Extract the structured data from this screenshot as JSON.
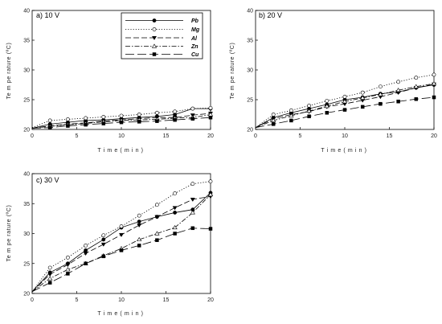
{
  "legend": {
    "entries": [
      "Pb",
      "Mg",
      "Al",
      "Zn",
      "Cu"
    ]
  },
  "chart_data": [
    {
      "type": "line",
      "title": "a) 10 V",
      "xlabel": "T i m e  ( m i n )",
      "ylabel": "Te m pe rature (ºC)",
      "xlim": [
        0,
        20
      ],
      "ylim": [
        20,
        40
      ],
      "xticks": [
        0,
        5,
        10,
        15,
        20
      ],
      "yticks": [
        20,
        25,
        30,
        35,
        40
      ],
      "grid": false,
      "legend_position": "top-right",
      "series": [
        {
          "name": "Pb",
          "x": [
            0,
            2,
            4,
            6,
            8,
            10,
            12,
            14,
            16,
            18,
            20
          ],
          "values": [
            20.2,
            20.9,
            21.2,
            21.5,
            21.6,
            21.8,
            22.0,
            22.2,
            22.5,
            23.5,
            23.5
          ]
        },
        {
          "name": "Mg",
          "x": [
            0,
            2,
            4,
            6,
            8,
            10,
            12,
            14,
            16,
            18,
            20
          ],
          "values": [
            20.3,
            21.5,
            21.7,
            21.9,
            22.1,
            22.3,
            22.5,
            22.8,
            23.0,
            23.5,
            23.6
          ]
        },
        {
          "name": "Al",
          "x": [
            0,
            2,
            4,
            6,
            8,
            10,
            12,
            14,
            16,
            18,
            20
          ],
          "values": [
            20.2,
            20.6,
            20.9,
            21.1,
            21.4,
            21.6,
            21.8,
            22.0,
            22.0,
            22.4,
            22.7
          ]
        },
        {
          "name": "Zn",
          "x": [
            0,
            2,
            4,
            6,
            8,
            10,
            12,
            14,
            16,
            18,
            20
          ],
          "values": [
            20.2,
            20.5,
            20.8,
            21.0,
            21.3,
            21.5,
            21.6,
            21.7,
            21.9,
            22.0,
            22.5
          ]
        },
        {
          "name": "Cu",
          "x": [
            0,
            2,
            4,
            6,
            8,
            10,
            12,
            14,
            16,
            18,
            20
          ],
          "values": [
            20.2,
            20.3,
            20.6,
            20.8,
            21.0,
            21.2,
            21.3,
            21.4,
            21.6,
            21.8,
            22.0
          ]
        }
      ]
    },
    {
      "type": "line",
      "title": "b) 20 V",
      "xlabel": "T i m e  ( m i n )",
      "ylabel": "Te m pe rature (ºC)",
      "xlim": [
        0,
        20
      ],
      "ylim": [
        20,
        40
      ],
      "xticks": [
        0,
        5,
        10,
        15,
        20
      ],
      "yticks": [
        20,
        25,
        30,
        35,
        40
      ],
      "grid": false,
      "series": [
        {
          "name": "Pb",
          "x": [
            0,
            2,
            4,
            6,
            8,
            10,
            12,
            14,
            16,
            18,
            20
          ],
          "values": [
            20.3,
            22.0,
            22.8,
            23.5,
            24.2,
            25.0,
            25.4,
            26.0,
            26.3,
            27.0,
            27.5
          ]
        },
        {
          "name": "Mg",
          "x": [
            0,
            2,
            4,
            6,
            8,
            10,
            12,
            14,
            16,
            18,
            20
          ],
          "values": [
            20.3,
            22.5,
            23.2,
            24.0,
            24.8,
            25.5,
            26.2,
            27.2,
            28.0,
            28.7,
            29.2
          ]
        },
        {
          "name": "Al",
          "x": [
            0,
            2,
            4,
            6,
            8,
            10,
            12,
            14,
            16,
            18,
            20
          ],
          "values": [
            20.3,
            21.8,
            22.5,
            23.0,
            23.8,
            24.3,
            24.9,
            25.5,
            26.2,
            27.0,
            27.6
          ]
        },
        {
          "name": "Zn",
          "x": [
            0,
            2,
            4,
            6,
            8,
            10,
            12,
            14,
            16,
            18,
            20
          ],
          "values": [
            20.3,
            21.5,
            22.3,
            23.1,
            23.9,
            24.7,
            25.3,
            25.9,
            26.6,
            27.2,
            27.7
          ]
        },
        {
          "name": "Cu",
          "x": [
            0,
            2,
            4,
            6,
            8,
            10,
            12,
            14,
            16,
            18,
            20
          ],
          "values": [
            20.3,
            20.9,
            21.5,
            22.2,
            22.8,
            23.3,
            23.8,
            24.3,
            24.7,
            25.1,
            25.4
          ]
        }
      ]
    },
    {
      "type": "line",
      "title": "c) 30 V",
      "xlabel": "T i m e  ( m i n )",
      "ylabel": "Te m pe rature (ºC)",
      "xlim": [
        0,
        20
      ],
      "ylim": [
        20,
        40
      ],
      "xticks": [
        0,
        5,
        10,
        15,
        20
      ],
      "yticks": [
        20,
        25,
        30,
        35,
        40
      ],
      "grid": false,
      "series": [
        {
          "name": "Pb",
          "x": [
            0,
            2,
            4,
            6,
            8,
            10,
            12,
            14,
            16,
            18,
            20
          ],
          "values": [
            20.3,
            23.5,
            25.0,
            27.2,
            29.0,
            31.0,
            32.0,
            32.8,
            33.5,
            34.0,
            36.8
          ]
        },
        {
          "name": "Mg",
          "x": [
            0,
            2,
            4,
            6,
            8,
            10,
            12,
            14,
            16,
            18,
            20
          ],
          "values": [
            20.3,
            24.3,
            26.0,
            28.0,
            29.7,
            31.2,
            33.0,
            34.8,
            36.7,
            38.3,
            38.7
          ]
        },
        {
          "name": "Al",
          "x": [
            0,
            2,
            4,
            6,
            8,
            10,
            12,
            14,
            16,
            18,
            20
          ],
          "values": [
            20.3,
            23.2,
            24.8,
            26.7,
            28.2,
            29.8,
            31.4,
            32.8,
            34.3,
            35.7,
            36.2
          ]
        },
        {
          "name": "Zn",
          "x": [
            0,
            2,
            4,
            6,
            8,
            10,
            12,
            14,
            16,
            18,
            20
          ],
          "values": [
            20.3,
            22.5,
            24.0,
            25.0,
            26.3,
            27.5,
            29.0,
            30.0,
            31.0,
            33.5,
            36.5
          ]
        },
        {
          "name": "Cu",
          "x": [
            0,
            2,
            4,
            6,
            8,
            10,
            12,
            14,
            16,
            18,
            20
          ],
          "values": [
            20.3,
            21.8,
            23.3,
            25.0,
            26.2,
            27.2,
            28.0,
            28.9,
            30.0,
            30.9,
            30.8
          ]
        }
      ]
    }
  ],
  "styles": {
    "Pb": {
      "dash": "",
      "marker": "circle-filled",
      "color": "#000000"
    },
    "Mg": {
      "dash": "1.2,2",
      "marker": "circle-open",
      "color": "#000000"
    },
    "Al": {
      "dash": "7,3",
      "marker": "triangle-down-filled",
      "color": "#000000"
    },
    "Zn": {
      "dash": "6,2,1.5,2",
      "marker": "triangle-up-open",
      "color": "#000000"
    },
    "Cu": {
      "dash": "11,4",
      "marker": "square-filled",
      "color": "#000000"
    }
  }
}
